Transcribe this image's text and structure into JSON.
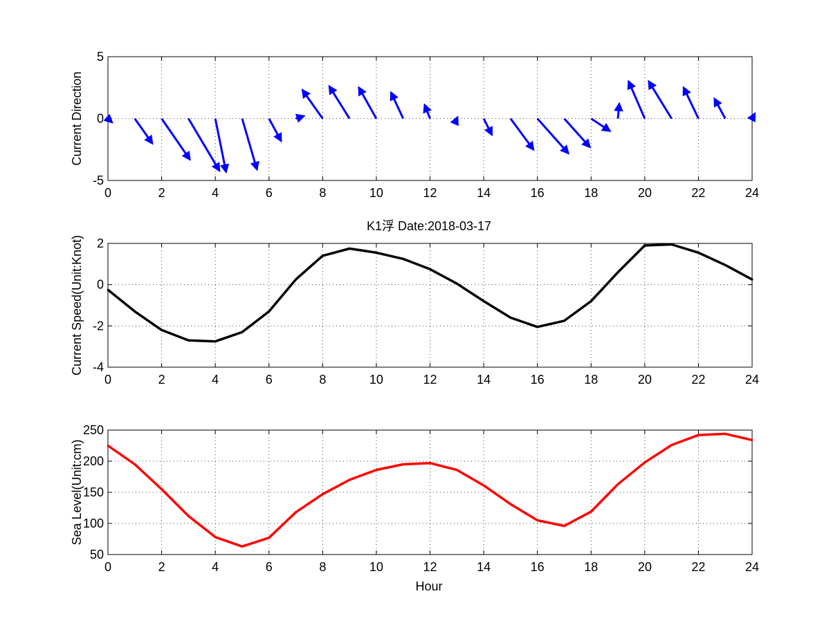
{
  "figure": {
    "title": "K1浮   Date:2018-03-17",
    "title_color": "#e00000",
    "shared_xlabel": "Hour"
  },
  "chart_data": [
    {
      "type": "quiver",
      "ylabel": "Current Direction",
      "xlim": [
        0,
        24
      ],
      "ylim": [
        -5,
        5
      ],
      "xticks": [
        0,
        2,
        4,
        6,
        8,
        10,
        12,
        14,
        16,
        18,
        20,
        22,
        24
      ],
      "yticks": [
        -5,
        0,
        5
      ],
      "grid": true,
      "color": "#0000ff",
      "x": [
        0,
        1,
        2,
        3,
        4,
        5,
        6,
        7,
        8,
        9,
        10,
        11,
        12,
        13,
        14,
        15,
        16,
        17,
        18,
        19,
        20,
        21,
        22,
        23,
        24
      ],
      "u": [
        0.15,
        0.65,
        1.05,
        1.15,
        0.4,
        0.55,
        0.45,
        0.3,
        -0.75,
        -0.75,
        -0.65,
        -0.45,
        -0.2,
        0.02,
        0.3,
        0.85,
        1.15,
        0.95,
        0.7,
        0.05,
        -0.6,
        -0.85,
        -0.55,
        -0.4,
        0.1
      ],
      "v": [
        -0.3,
        -2.0,
        -3.3,
        -4.2,
        -4.3,
        -4.1,
        -1.8,
        0.2,
        2.3,
        2.6,
        2.5,
        2.1,
        1.1,
        0.1,
        -1.3,
        -2.5,
        -2.8,
        -2.3,
        -1.0,
        1.2,
        3.0,
        3.0,
        2.5,
        1.6,
        0.4
      ]
    },
    {
      "type": "line",
      "ylabel": "Current Speed(Unit:Knot)",
      "xlim": [
        0,
        24
      ],
      "ylim": [
        -4,
        2
      ],
      "xticks": [
        0,
        2,
        4,
        6,
        8,
        10,
        12,
        14,
        16,
        18,
        20,
        22,
        24
      ],
      "yticks": [
        -4,
        -2,
        0,
        2
      ],
      "grid": true,
      "color": "#000000",
      "x": [
        0,
        1,
        2,
        3,
        4,
        5,
        6,
        7,
        8,
        9,
        10,
        11,
        12,
        13,
        14,
        15,
        16,
        17,
        18,
        19,
        20,
        21,
        22,
        23,
        24
      ],
      "y": [
        -0.25,
        -1.3,
        -2.2,
        -2.7,
        -2.75,
        -2.3,
        -1.3,
        0.25,
        1.4,
        1.75,
        1.55,
        1.25,
        0.75,
        0.05,
        -0.8,
        -1.6,
        -2.05,
        -1.75,
        -0.8,
        0.6,
        1.9,
        1.95,
        1.55,
        0.95,
        0.25
      ]
    },
    {
      "type": "line",
      "ylabel": "Sea Level(Unit:cm)",
      "xlabel": "Hour",
      "xlim": [
        0,
        24
      ],
      "ylim": [
        50,
        250
      ],
      "xticks": [
        0,
        2,
        4,
        6,
        8,
        10,
        12,
        14,
        16,
        18,
        20,
        22,
        24
      ],
      "yticks": [
        50,
        100,
        150,
        200,
        250
      ],
      "grid": true,
      "color": "#ff0000",
      "x": [
        0,
        1,
        2,
        3,
        4,
        5,
        6,
        7,
        8,
        9,
        10,
        11,
        12,
        13,
        14,
        15,
        16,
        17,
        18,
        19,
        20,
        21,
        22,
        23,
        24
      ],
      "y": [
        225,
        195,
        155,
        112,
        78,
        63,
        77,
        118,
        147,
        170,
        186,
        195,
        197,
        186,
        161,
        131,
        105,
        96,
        119,
        163,
        198,
        226,
        242,
        244,
        234
      ]
    }
  ]
}
